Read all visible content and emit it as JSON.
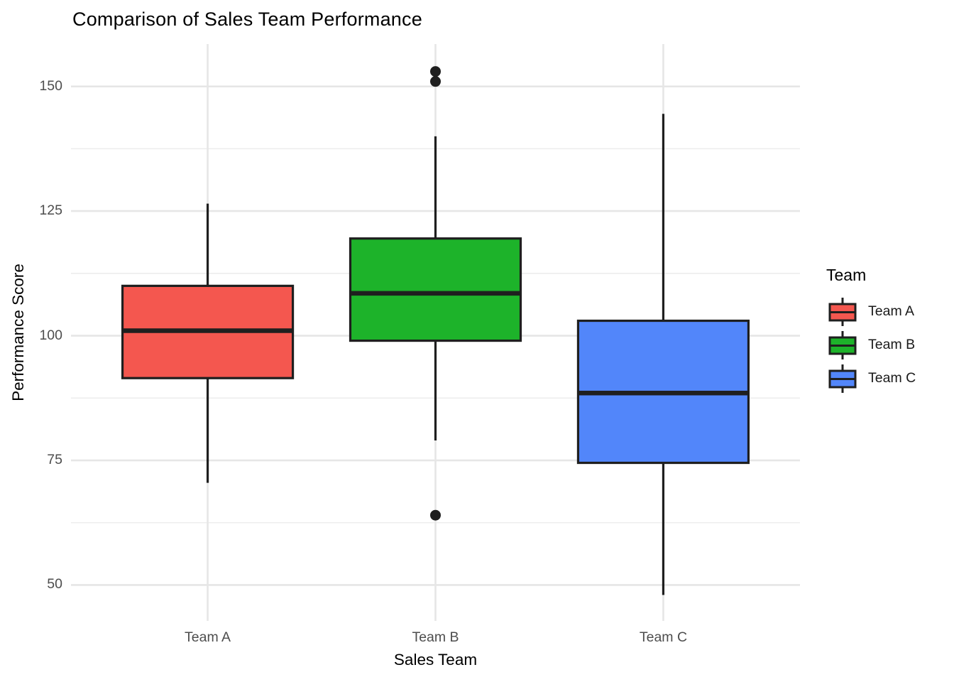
{
  "chart_data": {
    "type": "boxplot",
    "title": "Comparison of Sales Team Performance",
    "xlabel": "Sales Team",
    "ylabel": "Performance Score",
    "categories": [
      "Team A",
      "Team B",
      "Team C"
    ],
    "yticks": [
      50,
      75,
      100,
      125,
      150
    ],
    "yticks_minor": [
      62.5,
      87.5,
      112.5,
      137.5
    ],
    "ylim": [
      42.8,
      158.5
    ],
    "grid": "major and minor horizontal gridlines + vertical gridline per category, light gray on white",
    "legend_position": "right",
    "series": [
      {
        "name": "Team A",
        "fill": "#F4574F",
        "whisker_low": 70.5,
        "q1": 91.5,
        "median": 101,
        "q3": 110,
        "whisker_high": 126.5,
        "outliers": []
      },
      {
        "name": "Team B",
        "fill": "#1DB32A",
        "whisker_low": 79,
        "q1": 99,
        "median": 108.5,
        "q3": 119.5,
        "whisker_high": 140,
        "outliers": [
          64,
          151,
          153
        ]
      },
      {
        "name": "Team C",
        "fill": "#5286FA",
        "whisker_low": 48,
        "q1": 74.5,
        "median": 88.5,
        "q3": 103,
        "whisker_high": 144.5,
        "outliers": []
      }
    ],
    "legend": {
      "title": "Team",
      "entries": [
        "Team A",
        "Team B",
        "Team C"
      ]
    },
    "style": {
      "box_border": "#1F1F1F",
      "median_color": "#1F1F1F",
      "outlier_color": "#1F1F1F",
      "grid_major": "#E6E6E6",
      "grid_minor": "#EDEDED",
      "tick_text": "#4D4D4D",
      "title_text": "#000000",
      "background": "#FFFFFF"
    }
  }
}
